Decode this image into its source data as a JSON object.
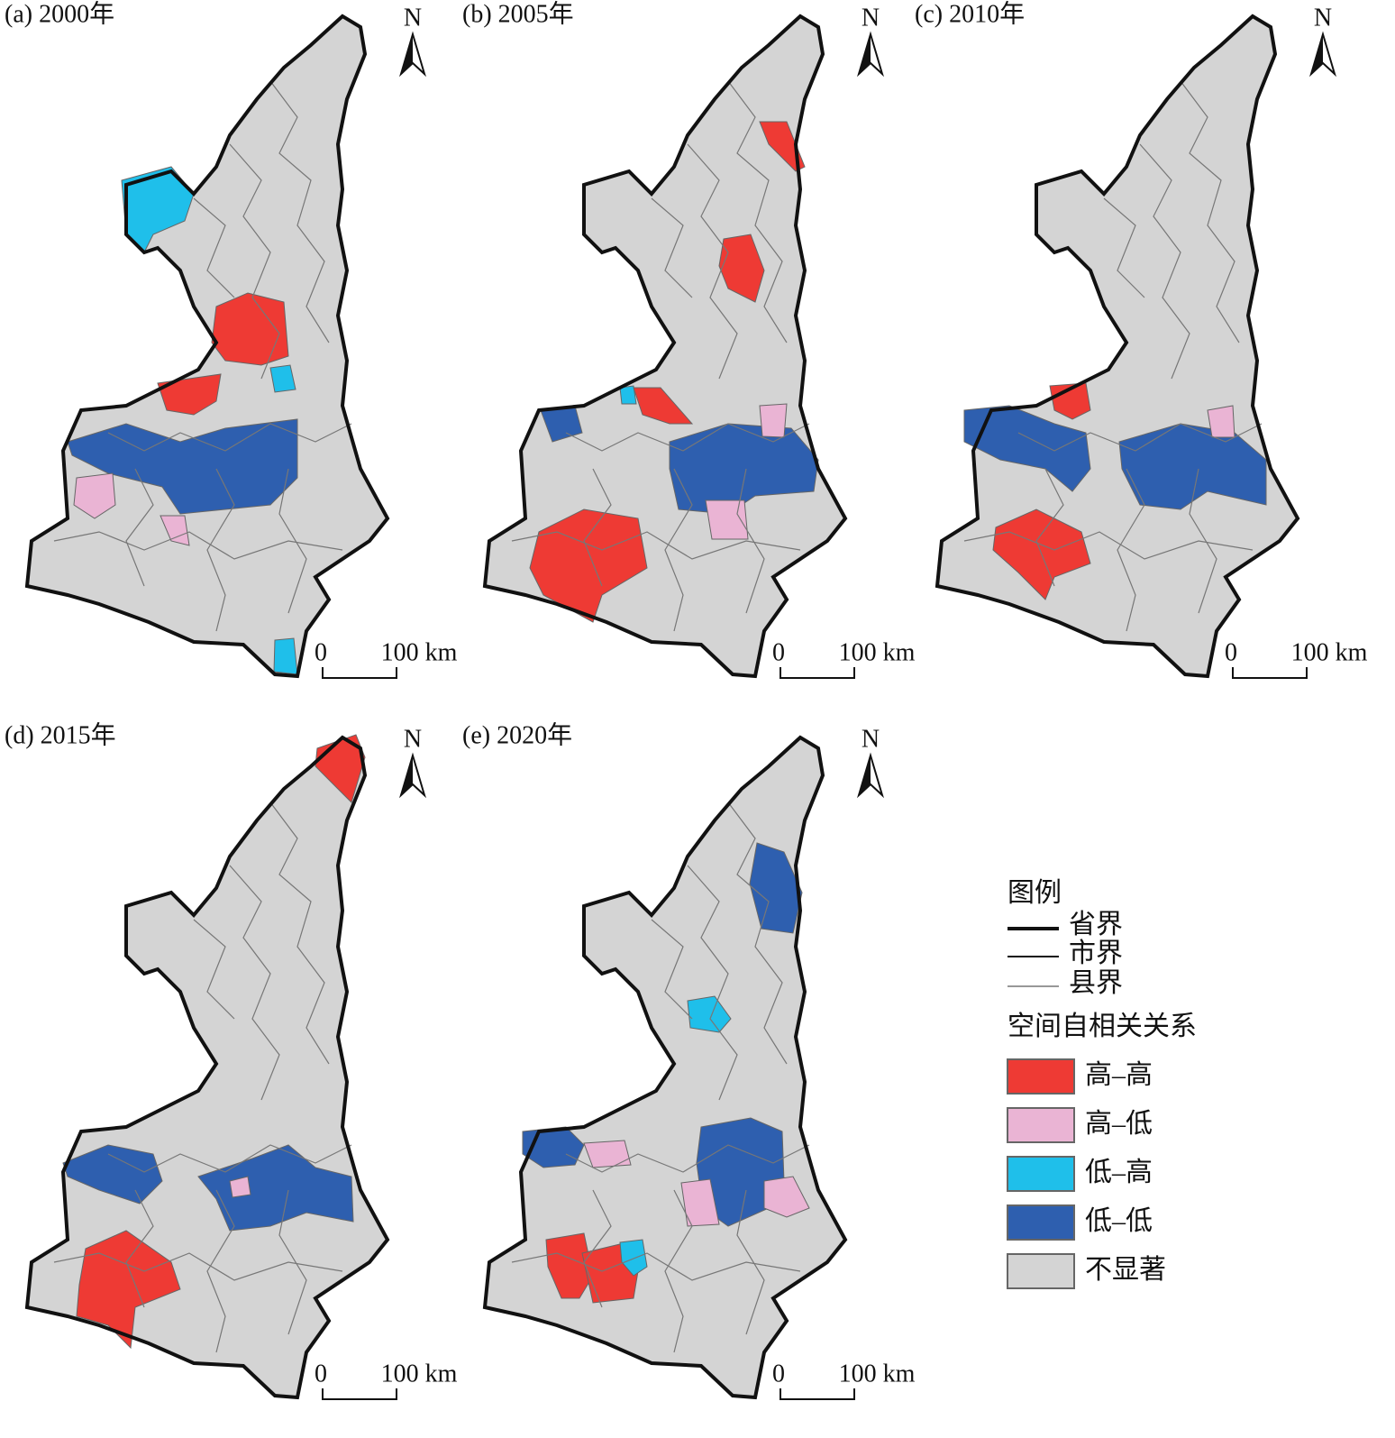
{
  "panels": [
    {
      "title": "(a) 2000年",
      "north": "N",
      "scale_start": "0",
      "scale_end": "100 km"
    },
    {
      "title": "(b) 2005年",
      "north": "N",
      "scale_start": "0",
      "scale_end": "100 km"
    },
    {
      "title": "(c) 2010年",
      "north": "N",
      "scale_start": "0",
      "scale_end": "100 km"
    },
    {
      "title": "(d) 2015年",
      "north": "N",
      "scale_start": "0",
      "scale_end": "100 km"
    },
    {
      "title": "(e) 2020年",
      "north": "N",
      "scale_start": "0",
      "scale_end": "100 km"
    }
  ],
  "legend": {
    "title": "图例",
    "boundaries": [
      {
        "label": "省界"
      },
      {
        "label": "市界"
      },
      {
        "label": "县界"
      }
    ],
    "subtitle": "空间自相关关系",
    "categories": [
      {
        "label": "高–高",
        "color": "#ee3a34"
      },
      {
        "label": "高–低",
        "color": "#eab4d4"
      },
      {
        "label": "低–高",
        "color": "#1fbfea"
      },
      {
        "label": "低–低",
        "color": "#2e5faf"
      },
      {
        "label": "不显著",
        "color": "#d4d4d4"
      }
    ]
  }
}
